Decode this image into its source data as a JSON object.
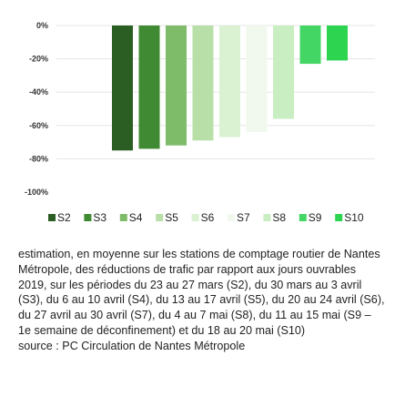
{
  "chart_data": {
    "type": "bar",
    "categories": [
      "S2",
      "S3",
      "S4",
      "S5",
      "S6",
      "S7",
      "S8",
      "S9",
      "S10"
    ],
    "values": [
      -75,
      -74,
      -72,
      -69,
      -67,
      -64,
      -56,
      -23,
      -21
    ],
    "colors": [
      "#2b5e22",
      "#3f8a32",
      "#7fbc6a",
      "#b8dfa8",
      "#daf1d2",
      "#f1f9ee",
      "#c9eec2",
      "#44d664",
      "#2dd44f"
    ],
    "ylim": [
      -100,
      0
    ],
    "yticks": [
      0,
      -20,
      -40,
      -60,
      -80,
      -100
    ],
    "ytick_labels": [
      "0%",
      "-20%",
      "-40%",
      "-60%",
      "-80%",
      "-100%"
    ],
    "legend_position": "bottom",
    "grid": true,
    "title": "",
    "xlabel": "",
    "ylabel": ""
  },
  "caption": {
    "description": "estimation, en moyenne sur les stations de comptage routier de Nantes Métropole, des réductions de trafic par rapport aux jours ouvrables 2019, sur les périodes du 23 au 27 mars (S2), du 30 mars au 3 avril (S3), du 6 au 10 avril (S4), du 13 au 17 avril (S5), du 20 au 24 avril (S6), du 27 avril au 30 avril (S7), du 4 au 7 mai (S8), du 11 au 15 mai (S9 – 1e semaine de déconfinement) et du 18 au 20 mai (S10)",
    "source": "source : PC Circulation de Nantes Métropole"
  }
}
